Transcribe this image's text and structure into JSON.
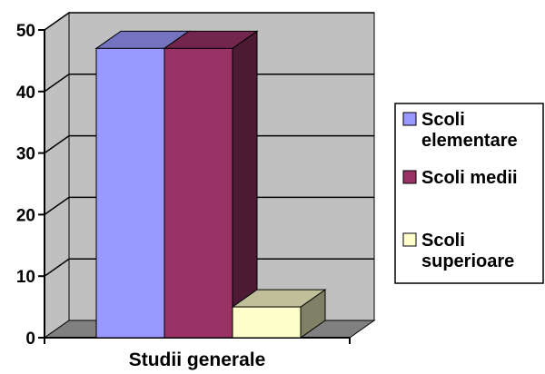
{
  "chart_data": {
    "type": "bar",
    "style": "3d-column",
    "categories": [
      "Studii generale"
    ],
    "series": [
      {
        "name": "Scoli elementare",
        "values": [
          47
        ],
        "color": "#9999FF"
      },
      {
        "name": "Scoli medii",
        "values": [
          47
        ],
        "color": "#993366"
      },
      {
        "name": "Scoli superioare",
        "values": [
          5
        ],
        "color": "#FFFFCC"
      }
    ],
    "ylim": [
      0,
      50
    ],
    "yticks": [
      0,
      10,
      20,
      30,
      40,
      50
    ],
    "grid": true,
    "legend": "right",
    "colors": {
      "walls": "#C0C0C0",
      "floor": "#808080",
      "gridlines": "#000000"
    }
  }
}
